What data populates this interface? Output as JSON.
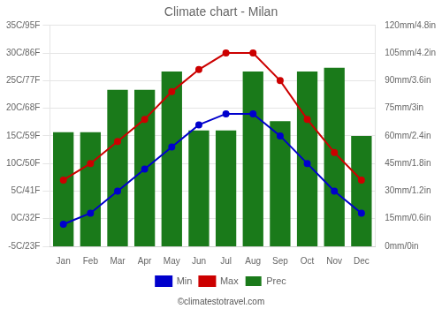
{
  "chart_data": {
    "type": "bar",
    "title": "Climate chart - Milan",
    "categories": [
      "Jan",
      "Feb",
      "Mar",
      "Apr",
      "May",
      "Jun",
      "Jul",
      "Aug",
      "Sep",
      "Oct",
      "Nov",
      "Dec"
    ],
    "series": [
      {
        "name": "Prec",
        "type": "bar",
        "color": "#1a7a1a",
        "axis": "y2",
        "values": [
          62,
          62,
          85,
          85,
          95,
          63,
          63,
          95,
          68,
          95,
          97,
          60
        ]
      },
      {
        "name": "Min",
        "type": "line",
        "color": "#0000cc",
        "marker": "circle",
        "line_style": "solid",
        "values": [
          -1,
          1,
          5,
          9,
          13,
          17,
          19,
          19,
          15,
          10,
          5,
          1
        ]
      },
      {
        "name": "Max",
        "type": "line",
        "color": "#cc0000",
        "marker": "circle",
        "line_style": "solid",
        "values": [
          7,
          10,
          14,
          18,
          23,
          27,
          30,
          30,
          25,
          18,
          12,
          7
        ]
      }
    ],
    "ylim": [
      -5,
      35
    ],
    "yticks": [
      {
        "value": -5,
        "label": "-5C/23F"
      },
      {
        "value": 0,
        "label": "0C/32F"
      },
      {
        "value": 5,
        "label": "5C/41F"
      },
      {
        "value": 10,
        "label": "10C/50F"
      },
      {
        "value": 15,
        "label": "15C/59F"
      },
      {
        "value": 20,
        "label": "20C/68F"
      },
      {
        "value": 25,
        "label": "25C/77F"
      },
      {
        "value": 30,
        "label": "30C/86F"
      },
      {
        "value": 35,
        "label": "35C/95F"
      }
    ],
    "y2lim": [
      0,
      120
    ],
    "y2ticks": [
      {
        "value": 0,
        "label": "0mm/0in"
      },
      {
        "value": 15,
        "label": "15mm/0.6in"
      },
      {
        "value": 30,
        "label": "30mm/1.2in"
      },
      {
        "value": 45,
        "label": "45mm/1.8in"
      },
      {
        "value": 60,
        "label": "60mm/2.4in"
      },
      {
        "value": 75,
        "label": "75mm/3in"
      },
      {
        "value": 90,
        "label": "90mm/3.6in"
      },
      {
        "value": 105,
        "label": "105mm/4.2in"
      },
      {
        "value": 120,
        "label": "120mm/4.8in"
      }
    ],
    "grid": true,
    "legend": "bottom",
    "annotation": "©climatestotravel.com"
  }
}
